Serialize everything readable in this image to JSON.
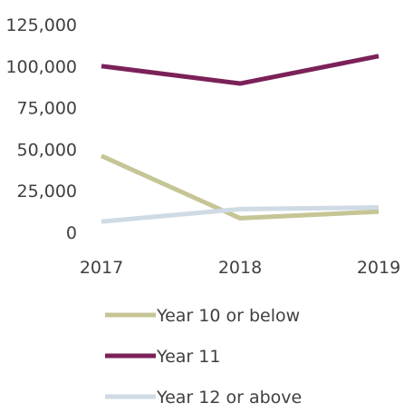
{
  "chart_data": {
    "type": "line",
    "title": "",
    "xlabel": "",
    "ylabel": "",
    "x": [
      "2017",
      "2018",
      "2019"
    ],
    "ylim": [
      0,
      125000
    ],
    "yticks": [
      "0",
      "25,000",
      "50,000",
      "75,000",
      "100,000",
      "125,000"
    ],
    "grid": false,
    "legend_position": "bottom",
    "series": [
      {
        "name": "Year 10 or below",
        "color": "#c5c596",
        "values": [
          46000,
          8500,
          12500
        ]
      },
      {
        "name": "Year 11",
        "color": "#7b2159",
        "values": [
          100000,
          89500,
          106000
        ]
      },
      {
        "name": "Year 12 or above",
        "color": "#cfdae4",
        "values": [
          6500,
          14000,
          15000
        ]
      }
    ]
  }
}
